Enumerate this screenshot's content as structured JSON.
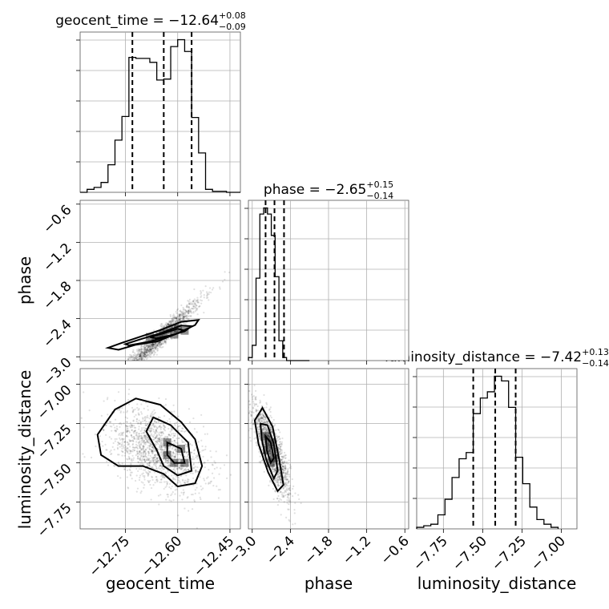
{
  "chart_data": {
    "type": "corner",
    "parameters": [
      "geocent_time",
      "phase",
      "luminosity_distance"
    ],
    "titles": {
      "geocent_time": {
        "name": "geocent_time",
        "median": "−12.64",
        "plus": "+0.08",
        "minus": "−0.09"
      },
      "phase": {
        "name": "phase",
        "median": "−2.65",
        "plus": "+0.15",
        "minus": "−0.14"
      },
      "luminosity_distance": {
        "name": "luminosity_distance",
        "median": "−7.42",
        "plus": "+0.13",
        "minus": "−0.14"
      }
    },
    "axis_labels": {
      "geocent_time": "geocent_time",
      "phase": "phase",
      "luminosity_distance": "luminosity_distance"
    },
    "ranges": {
      "geocent_time": [
        -12.88,
        -12.42
      ],
      "phase": [
        -3.06,
        -0.54
      ],
      "luminosity_distance": [
        -7.92,
        -6.9
      ]
    },
    "ticks": {
      "geocent_time": {
        "values": [
          -12.75,
          -12.6,
          -12.45
        ],
        "labels": [
          "−12.75",
          "−12.60",
          "−12.45"
        ]
      },
      "phase": {
        "values": [
          -3.0,
          -2.4,
          -1.8,
          -1.2,
          -0.6
        ],
        "labels": [
          "−3.0",
          "−2.4",
          "−1.8",
          "−1.2",
          "−0.6"
        ]
      },
      "luminosity_distance": {
        "values": [
          -7.75,
          -7.5,
          -7.25,
          -7.0
        ],
        "labels": [
          "−7.75",
          "−7.50",
          "−7.25",
          "−7.00"
        ]
      }
    },
    "quantiles": {
      "geocent_time": [
        -12.73,
        -12.64,
        -12.56
      ],
      "phase": [
        -2.79,
        -2.65,
        -2.5
      ],
      "luminosity_distance": [
        -7.56,
        -7.42,
        -7.29
      ]
    },
    "hist_geocent_time": {
      "edges": [
        -12.88,
        -12.86,
        -12.84,
        -12.82,
        -12.8,
        -12.78,
        -12.76,
        -12.74,
        -12.72,
        -12.7,
        -12.68,
        -12.66,
        -12.64,
        -12.62,
        -12.6,
        -12.58,
        -12.56,
        -12.54,
        -12.52,
        -12.5,
        -12.48,
        -12.46,
        -12.44,
        -12.42
      ],
      "counts": [
        0,
        3,
        5,
        10,
        28,
        53,
        77,
        137,
        136,
        136,
        132,
        114,
        115,
        148,
        155,
        143,
        76,
        40,
        3,
        1,
        1,
        0,
        0
      ]
    },
    "hist_phase": {
      "edges": [
        -3.06,
        -3.0,
        -2.94,
        -2.88,
        -2.82,
        -2.76,
        -2.7,
        -2.64,
        -2.58,
        -2.52,
        -2.46,
        -2.4,
        -2.34,
        -2.28,
        -2.22,
        -2.16,
        -2.1
      ],
      "counts": [
        2,
        10,
        54,
        96,
        100,
        96,
        82,
        55,
        13,
        2,
        0,
        0,
        0,
        0,
        0,
        0
      ]
    },
    "hist_luminosity_distance": {
      "edges": [
        -7.92,
        -7.875,
        -7.83,
        -7.785,
        -7.74,
        -7.695,
        -7.65,
        -7.605,
        -7.56,
        -7.515,
        -7.47,
        -7.425,
        -7.38,
        -7.335,
        -7.29,
        -7.245,
        -7.2,
        -7.155,
        -7.11,
        -7.065,
        -7.02
      ],
      "counts": [
        1,
        2,
        3,
        9,
        19,
        33,
        45,
        49,
        74,
        84,
        88,
        98,
        95,
        78,
        46,
        29,
        14,
        6,
        3,
        1
      ]
    },
    "scatter_phase_vs_geocent_time": {
      "x_mean": -12.66,
      "x_sd": 0.065,
      "slope": 5.0,
      "intercept": 60.55,
      "y_sd": 0.08,
      "contours": [
        [
          [
            -12.77,
            -2.89
          ],
          [
            -12.72,
            -2.81
          ],
          [
            -12.66,
            -2.76
          ],
          [
            -12.6,
            -2.63
          ],
          [
            -12.55,
            -2.5
          ],
          [
            -12.54,
            -2.42
          ],
          [
            -12.59,
            -2.45
          ],
          [
            -12.65,
            -2.58
          ],
          [
            -12.71,
            -2.69
          ],
          [
            -12.76,
            -2.78
          ],
          [
            -12.8,
            -2.86
          ]
        ],
        [
          [
            -12.74,
            -2.82
          ],
          [
            -12.68,
            -2.76
          ],
          [
            -12.63,
            -2.68
          ],
          [
            -12.58,
            -2.6
          ],
          [
            -12.56,
            -2.52
          ],
          [
            -12.59,
            -2.51
          ],
          [
            -12.65,
            -2.63
          ],
          [
            -12.71,
            -2.73
          ],
          [
            -12.75,
            -2.8
          ]
        ],
        [
          [
            -12.66,
            -2.71
          ],
          [
            -12.61,
            -2.65
          ],
          [
            -12.58,
            -2.59
          ],
          [
            -12.6,
            -2.56
          ],
          [
            -12.64,
            -2.63
          ],
          [
            -12.68,
            -2.69
          ]
        ]
      ]
    },
    "scatter_luminosity_distance_vs_geocent_time": {
      "x_mean": -12.66,
      "x_sd": 0.07,
      "y_mean": -7.42,
      "y_sd": 0.13,
      "contours": [
        [
          [
            -12.83,
            -7.32
          ],
          [
            -12.78,
            -7.16
          ],
          [
            -12.72,
            -7.09
          ],
          [
            -12.65,
            -7.13
          ],
          [
            -12.59,
            -7.24
          ],
          [
            -12.55,
            -7.35
          ],
          [
            -12.53,
            -7.52
          ],
          [
            -12.55,
            -7.63
          ],
          [
            -12.6,
            -7.65
          ],
          [
            -12.64,
            -7.57
          ],
          [
            -12.7,
            -7.52
          ],
          [
            -12.77,
            -7.52
          ],
          [
            -12.82,
            -7.45
          ]
        ],
        [
          [
            -12.67,
            -7.21
          ],
          [
            -12.62,
            -7.26
          ],
          [
            -12.57,
            -7.37
          ],
          [
            -12.56,
            -7.55
          ],
          [
            -12.6,
            -7.58
          ],
          [
            -12.64,
            -7.52
          ],
          [
            -12.66,
            -7.42
          ],
          [
            -12.69,
            -7.3
          ]
        ],
        [
          [
            -12.63,
            -7.37
          ],
          [
            -12.59,
            -7.41
          ],
          [
            -12.58,
            -7.5
          ],
          [
            -12.61,
            -7.5
          ],
          [
            -12.63,
            -7.45
          ]
        ]
      ]
    },
    "scatter_luminosity_distance_vs_phase": {
      "x_mean": -2.69,
      "x_sd": 0.14,
      "y_mean": -7.42,
      "y_sd": 0.14,
      "contours": [
        [
          [
            -2.96,
            -7.23
          ],
          [
            -2.84,
            -7.15
          ],
          [
            -2.68,
            -7.27
          ],
          [
            -2.58,
            -7.47
          ],
          [
            -2.51,
            -7.64
          ],
          [
            -2.6,
            -7.68
          ],
          [
            -2.75,
            -7.56
          ],
          [
            -2.9,
            -7.38
          ]
        ],
        [
          [
            -2.87,
            -7.25
          ],
          [
            -2.76,
            -7.26
          ],
          [
            -2.66,
            -7.38
          ],
          [
            -2.6,
            -7.55
          ],
          [
            -2.66,
            -7.6
          ],
          [
            -2.78,
            -7.48
          ],
          [
            -2.85,
            -7.35
          ]
        ],
        [
          [
            -2.79,
            -7.33
          ],
          [
            -2.71,
            -7.37
          ],
          [
            -2.66,
            -7.47
          ],
          [
            -2.71,
            -7.5
          ],
          [
            -2.77,
            -7.42
          ]
        ]
      ]
    }
  }
}
